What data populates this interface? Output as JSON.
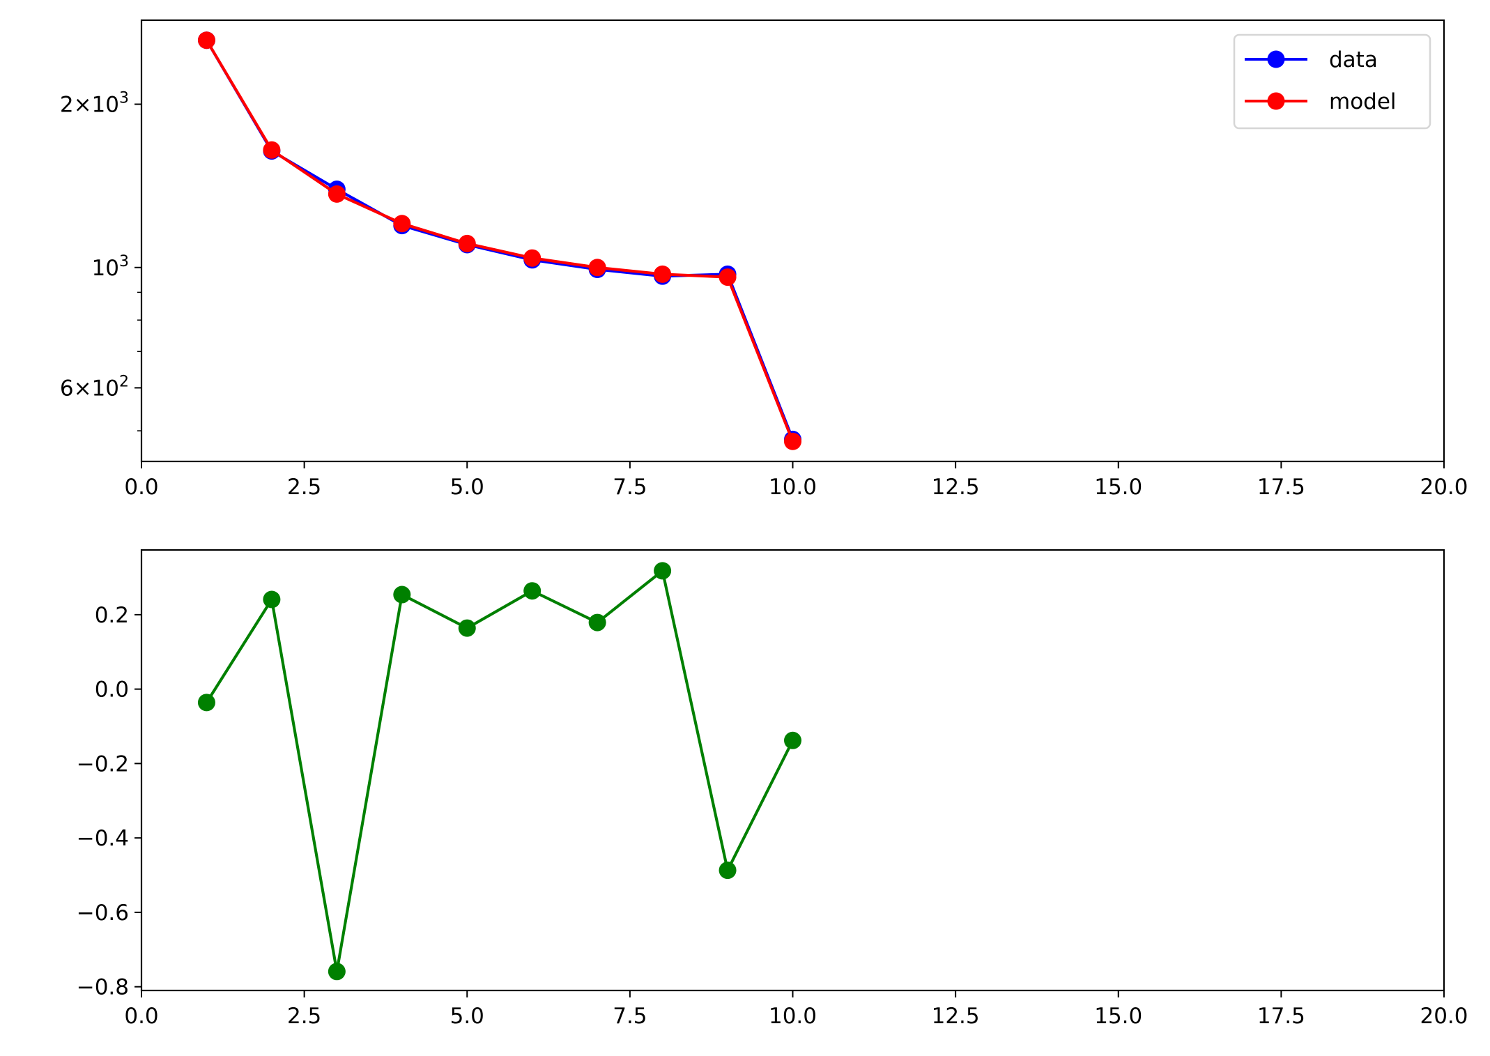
{
  "chart_data": [
    {
      "type": "line",
      "yscale": "log",
      "xlim": [
        0,
        20
      ],
      "ylim": [
        439,
        2857
      ],
      "grid": false,
      "legend_position": "top-right",
      "x_ticks": [
        "0.0",
        "2.5",
        "5.0",
        "7.5",
        "10.0",
        "12.5",
        "15.0",
        "17.5",
        "20.0"
      ],
      "x_tick_values": [
        0,
        2.5,
        5,
        7.5,
        10,
        12.5,
        15,
        17.5,
        20
      ],
      "y_major_ticks": [
        {
          "value": 2000,
          "mantissa": "2×10",
          "exponent": "3"
        },
        {
          "value": 1000,
          "mantissa": "10",
          "exponent": "3"
        },
        {
          "value": 600,
          "mantissa": "6×10",
          "exponent": "2"
        }
      ],
      "y_minor_tick_values": [
        500,
        700,
        800,
        900
      ],
      "x": [
        1,
        2,
        3,
        4,
        5,
        6,
        7,
        8,
        9,
        10
      ],
      "series": [
        {
          "name": "data",
          "color": "#0000ff",
          "values": [
            2624,
            1640,
            1394,
            1195,
            1102,
            1033,
            992,
            964,
            972,
            482
          ]
        },
        {
          "name": "model",
          "color": "#ff0000",
          "values": [
            2624,
            1647,
            1366,
            1205,
            1107,
            1041,
            1000,
            972,
            960,
            478
          ]
        }
      ]
    },
    {
      "type": "line",
      "xlim": [
        0,
        20
      ],
      "ylim": [
        -0.81,
        0.374
      ],
      "grid": false,
      "x_ticks": [
        "0.0",
        "2.5",
        "5.0",
        "7.5",
        "10.0",
        "12.5",
        "15.0",
        "17.5",
        "20.0"
      ],
      "x_tick_values": [
        0,
        2.5,
        5,
        7.5,
        10,
        12.5,
        15,
        17.5,
        20
      ],
      "y_ticks": [
        "0.2",
        "0.0",
        "−0.2",
        "−0.4",
        "−0.6",
        "−0.8"
      ],
      "y_tick_values": [
        0.2,
        0,
        -0.2,
        -0.4,
        -0.6,
        -0.8
      ],
      "x": [
        1,
        2,
        3,
        4,
        5,
        6,
        7,
        8,
        9,
        10
      ],
      "series": [
        {
          "color": "#008000",
          "values": [
            -0.036,
            0.241,
            -0.759,
            0.254,
            0.164,
            0.264,
            0.179,
            0.318,
            -0.487,
            -0.138
          ]
        }
      ]
    }
  ]
}
